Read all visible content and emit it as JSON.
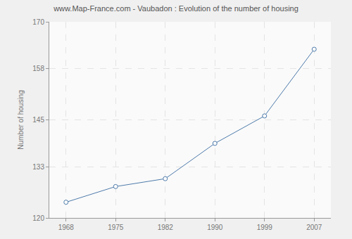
{
  "chart_data": {
    "type": "line",
    "title": "www.Map-France.com - Vaubadon : Evolution of the number of housing",
    "y_label": "Number of housing",
    "categories": [
      "1968",
      "1975",
      "1982",
      "1990",
      "1999",
      "2007"
    ],
    "values": [
      124,
      128,
      130,
      139,
      146,
      163
    ],
    "color": "#4e7bab",
    "marker": "circle",
    "ylim": [
      120,
      170
    ],
    "yticks": [
      120,
      133,
      145,
      158,
      170
    ],
    "grid": true
  }
}
